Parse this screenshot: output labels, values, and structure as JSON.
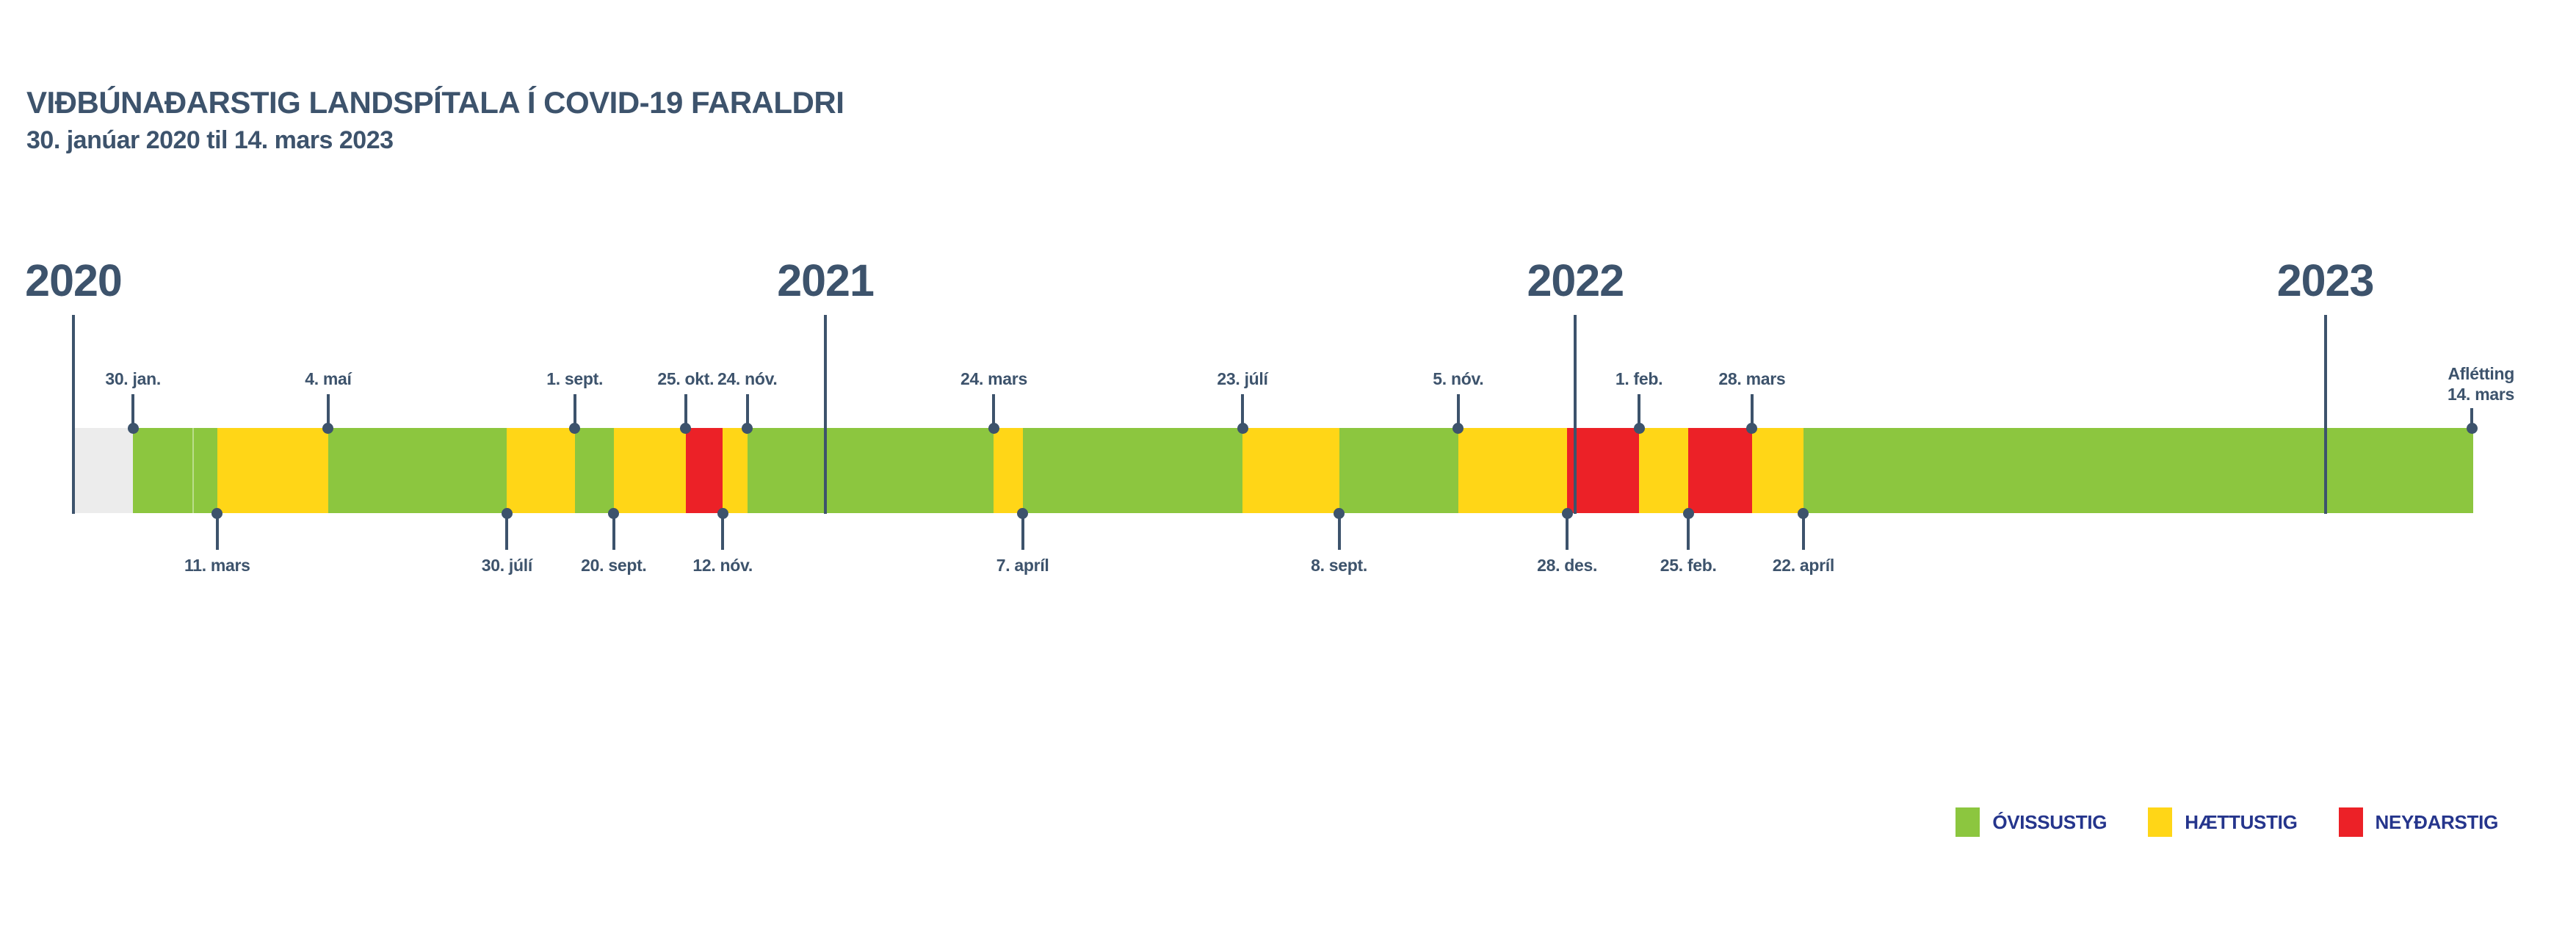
{
  "header": {
    "title": "VIÐBÚNAÐARSTIG LANDSPÍTALA Í COVID-19 FARALDRI",
    "subtitle": "30. janúar 2020 til 14. mars 2023"
  },
  "chart_data": {
    "type": "timeline",
    "title": "VIÐBÚNAÐARSTIG LANDSPÍTALA Í COVID-19 FARALDRI",
    "subtitle": "30. janúar 2020 til 14. mars 2023",
    "domain": {
      "start": "2020-01-01",
      "end": "2023-03-14"
    },
    "levels": {
      "none": "#ECECEC",
      "ovissustig": "#8CC63F",
      "haettustig": "#FFD617",
      "neydarstig": "#EC2127"
    },
    "segments": [
      {
        "start": "2020-01-01",
        "end": "2020-01-30",
        "level": "none"
      },
      {
        "start": "2020-01-30",
        "end": "2020-02-28",
        "level": "ovissustig"
      },
      {
        "start": "2020-02-28",
        "end": "2020-03-11",
        "level": "ovissustig"
      },
      {
        "start": "2020-03-11",
        "end": "2020-05-04",
        "level": "haettustig"
      },
      {
        "start": "2020-05-04",
        "end": "2020-07-30",
        "level": "ovissustig"
      },
      {
        "start": "2020-07-30",
        "end": "2020-09-01",
        "level": "haettustig"
      },
      {
        "start": "2020-09-01",
        "end": "2020-09-20",
        "level": "ovissustig"
      },
      {
        "start": "2020-09-20",
        "end": "2020-10-25",
        "level": "haettustig"
      },
      {
        "start": "2020-10-25",
        "end": "2020-11-12",
        "level": "neydarstig"
      },
      {
        "start": "2020-11-12",
        "end": "2020-11-24",
        "level": "haettustig"
      },
      {
        "start": "2020-11-24",
        "end": "2021-03-24",
        "level": "ovissustig"
      },
      {
        "start": "2021-03-24",
        "end": "2021-04-07",
        "level": "haettustig"
      },
      {
        "start": "2021-04-07",
        "end": "2021-07-23",
        "level": "ovissustig"
      },
      {
        "start": "2021-07-23",
        "end": "2021-09-08",
        "level": "haettustig"
      },
      {
        "start": "2021-09-08",
        "end": "2021-11-05",
        "level": "ovissustig"
      },
      {
        "start": "2021-11-05",
        "end": "2021-12-28",
        "level": "haettustig"
      },
      {
        "start": "2021-12-28",
        "end": "2022-02-01",
        "level": "neydarstig"
      },
      {
        "start": "2022-02-01",
        "end": "2022-02-25",
        "level": "haettustig"
      },
      {
        "start": "2022-02-25",
        "end": "2022-03-28",
        "level": "neydarstig"
      },
      {
        "start": "2022-03-28",
        "end": "2022-04-22",
        "level": "haettustig"
      },
      {
        "start": "2022-04-22",
        "end": "2023-03-14",
        "level": "ovissustig"
      }
    ],
    "years": [
      {
        "label": "2020",
        "date": "2020-01-01"
      },
      {
        "label": "2021",
        "date": "2021-01-01"
      },
      {
        "label": "2022",
        "date": "2022-01-01"
      },
      {
        "label": "2023",
        "date": "2023-01-01"
      }
    ],
    "markers_above": [
      {
        "label": "30. jan.",
        "date": "2020-01-30"
      },
      {
        "label": "4. maí",
        "date": "2020-05-04"
      },
      {
        "label": "1. sept.",
        "date": "2020-09-01"
      },
      {
        "label": "25. okt.",
        "date": "2020-10-25"
      },
      {
        "label": "24. nóv.",
        "date": "2020-11-24"
      },
      {
        "label": "24. mars",
        "date": "2021-03-24"
      },
      {
        "label": "23. júlí",
        "date": "2021-07-23"
      },
      {
        "label": "5. nóv.",
        "date": "2021-11-05"
      },
      {
        "label": "1. feb.",
        "date": "2022-02-01"
      },
      {
        "label": "28. mars",
        "date": "2022-03-28"
      }
    ],
    "markers_below": [
      {
        "label": "11. mars",
        "date": "2020-03-11"
      },
      {
        "label": "30. júlí",
        "date": "2020-07-30"
      },
      {
        "label": "20. sept.",
        "date": "2020-09-20"
      },
      {
        "label": "12. nóv.",
        "date": "2020-11-12"
      },
      {
        "label": "7. apríl",
        "date": "2021-04-07"
      },
      {
        "label": "8. sept.",
        "date": "2021-09-08"
      },
      {
        "label": "28. des.",
        "date": "2021-12-28"
      },
      {
        "label": "25. feb.",
        "date": "2022-02-25"
      },
      {
        "label": "22. apríl",
        "date": "2022-04-22"
      }
    ],
    "end_marker": {
      "lines": [
        "Aflétting",
        "14. mars"
      ],
      "date": "2023-03-14"
    },
    "legend": [
      {
        "label": "ÓVISSUSTIG",
        "level": "ovissustig"
      },
      {
        "label": "HÆTTUSTIG",
        "level": "haettustig"
      },
      {
        "label": "NEYÐARSTIG",
        "level": "neydarstig"
      }
    ]
  }
}
